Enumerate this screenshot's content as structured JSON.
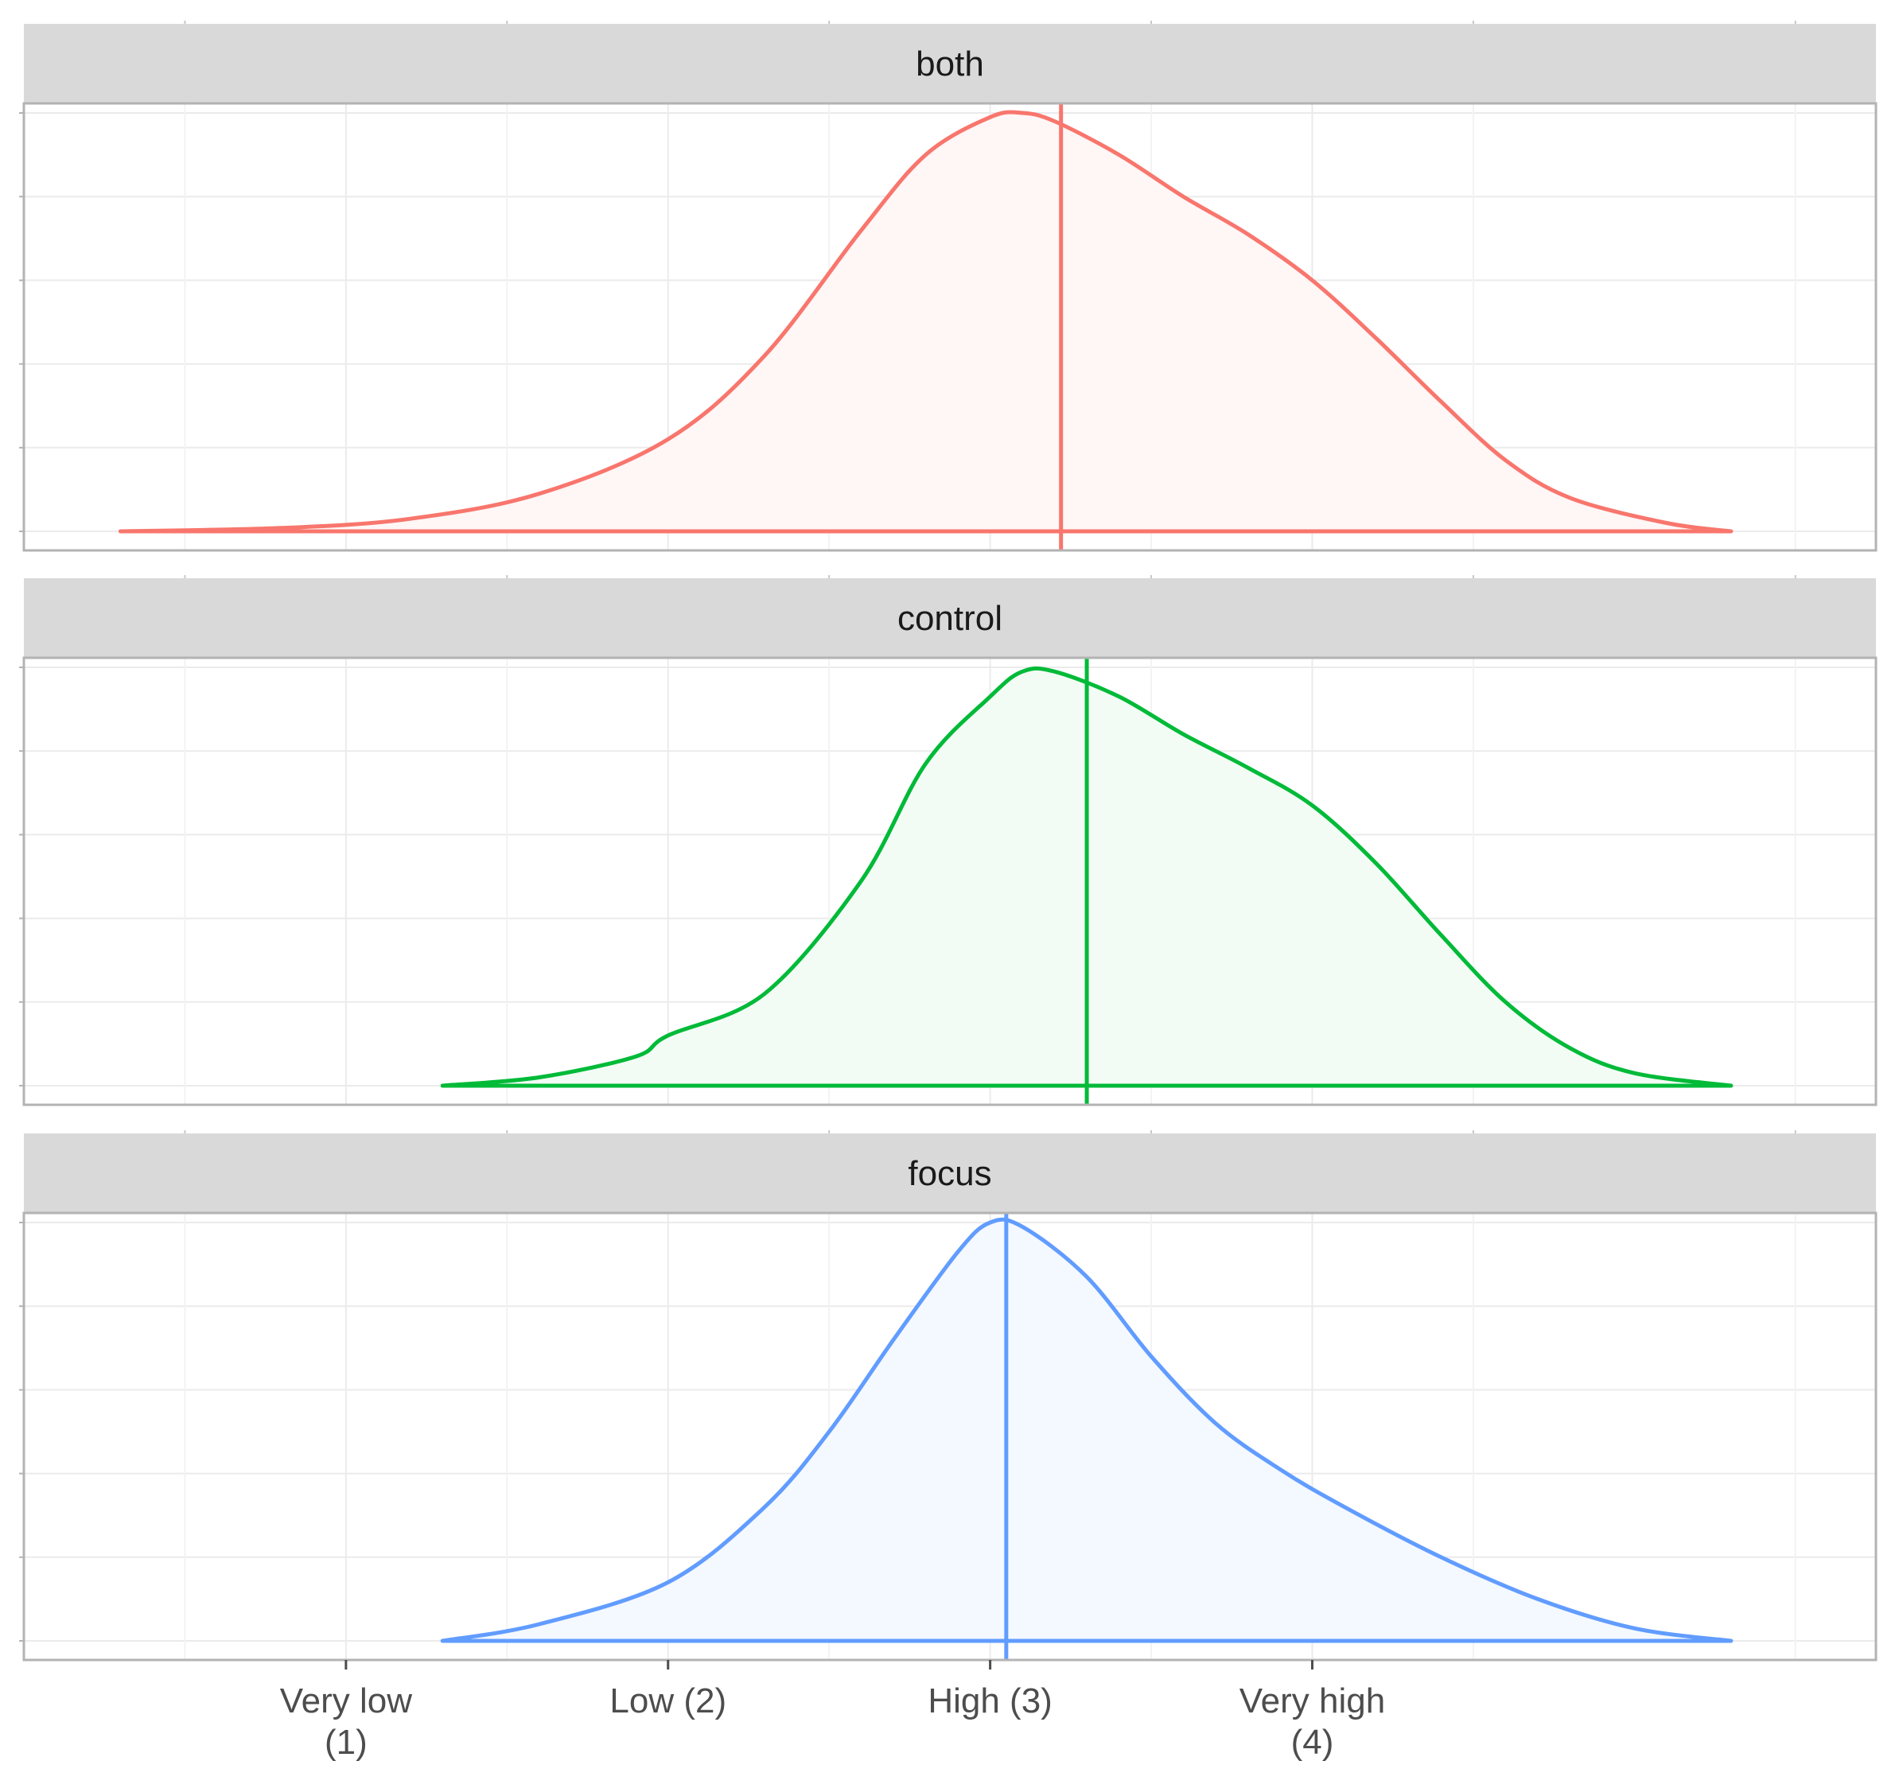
{
  "chart_data": {
    "type": "area",
    "kind": "faceted density plot with mean lines",
    "xlabel": "",
    "ylabel": "",
    "xlim": [
      0.0,
      5.75
    ],
    "x_ticks": [
      {
        "value": 1,
        "label": [
          "Very low",
          "(1)"
        ]
      },
      {
        "value": 2,
        "label": [
          "Low (2)"
        ]
      },
      {
        "value": 3,
        "label": [
          "High (3)"
        ]
      },
      {
        "value": 4,
        "label": [
          "Very high",
          "(4)"
        ]
      }
    ],
    "y_ticks_labelled": false,
    "grid": true,
    "legend": "none",
    "facets": [
      {
        "name": "both",
        "color": "#F8766D",
        "fill": "#FFF6F6",
        "mean": 3.22,
        "density": {
          "x": [
            0.3,
            0.8,
            1.2,
            1.6,
            2.0,
            2.3,
            2.6,
            2.8,
            3.0,
            3.1,
            3.2,
            3.4,
            3.6,
            3.8,
            4.0,
            4.2,
            4.4,
            4.6,
            4.8,
            5.1,
            5.3
          ],
          "y": [
            0.0,
            0.008,
            0.03,
            0.09,
            0.22,
            0.42,
            0.72,
            0.9,
            0.99,
            1.0,
            0.98,
            0.9,
            0.8,
            0.71,
            0.6,
            0.46,
            0.31,
            0.17,
            0.08,
            0.02,
            0.0
          ]
        }
      },
      {
        "name": "control",
        "color": "#00BA38",
        "fill": "#F3FBF5",
        "mean": 3.3,
        "density": {
          "x": [
            1.3,
            1.6,
            1.9,
            2.0,
            2.3,
            2.6,
            2.8,
            3.0,
            3.1,
            3.2,
            3.4,
            3.6,
            3.8,
            4.0,
            4.2,
            4.4,
            4.6,
            4.8,
            5.0,
            5.3
          ],
          "y": [
            0.0,
            0.02,
            0.07,
            0.12,
            0.22,
            0.49,
            0.77,
            0.93,
            0.99,
            0.99,
            0.93,
            0.84,
            0.76,
            0.67,
            0.53,
            0.36,
            0.2,
            0.09,
            0.03,
            0.0
          ]
        }
      },
      {
        "name": "focus",
        "color": "#619CFF",
        "fill": "#F4F8FF",
        "mean": 3.05,
        "density": {
          "x": [
            1.3,
            1.6,
            2.0,
            2.3,
            2.5,
            2.7,
            2.9,
            3.0,
            3.1,
            3.3,
            3.5,
            3.7,
            3.9,
            4.1,
            4.4,
            4.7,
            5.0,
            5.3
          ],
          "y": [
            0.0,
            0.04,
            0.14,
            0.32,
            0.5,
            0.72,
            0.93,
            1.0,
            0.99,
            0.87,
            0.68,
            0.52,
            0.41,
            0.32,
            0.2,
            0.1,
            0.03,
            0.0
          ]
        }
      }
    ]
  }
}
